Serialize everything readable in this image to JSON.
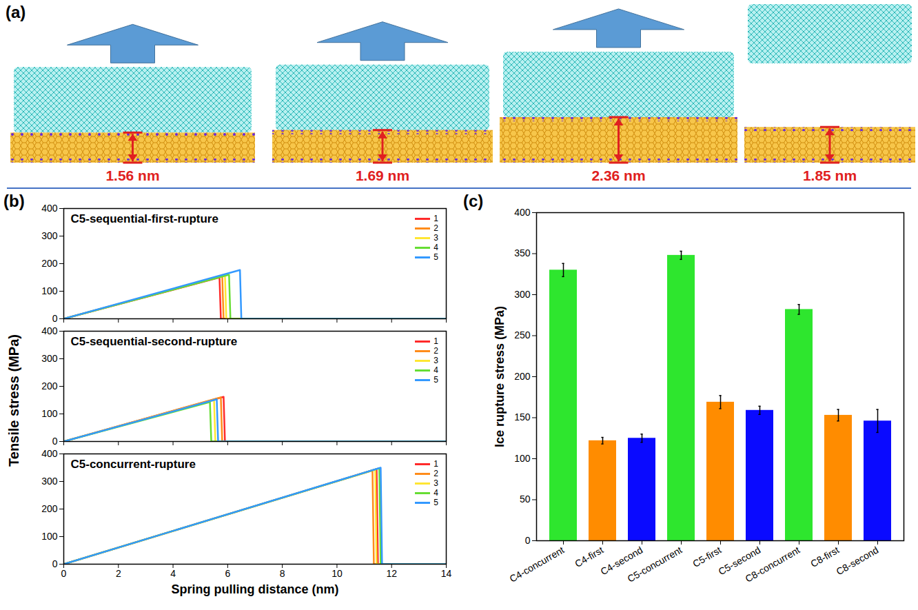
{
  "panel_a": {
    "label": "(a)",
    "values": [
      1.56,
      1.69,
      2.36,
      1.85
    ],
    "value_labels": [
      "1.56 nm",
      "1.69 nm",
      "2.36 nm",
      "1.85 nm"
    ]
  },
  "panel_b_label": "(b)",
  "panel_c_label": "(c)",
  "chart_data": [
    {
      "type": "line",
      "title": "C5-sequential-first-rupture",
      "xlim": [
        0,
        14
      ],
      "xticks": [
        0,
        2,
        4,
        6,
        8,
        10,
        12,
        14
      ],
      "ylim": [
        0,
        400
      ],
      "yticks": [
        0,
        100,
        200,
        300,
        400
      ],
      "tick_labels": "y",
      "legend": "upper right",
      "series": [
        {
          "name": "1",
          "color": "#ff2a2a",
          "x": [
            0,
            5.7,
            5.75,
            14
          ],
          "values": [
            0,
            150,
            0,
            0
          ]
        },
        {
          "name": "2",
          "color": "#ff8c1a",
          "x": [
            0,
            5.8,
            5.85,
            14
          ],
          "values": [
            0,
            155,
            0,
            0
          ]
        },
        {
          "name": "3",
          "color": "#ffe633",
          "x": [
            0,
            5.9,
            5.95,
            14
          ],
          "values": [
            0,
            158,
            0,
            0
          ]
        },
        {
          "name": "4",
          "color": "#66dd33",
          "x": [
            0,
            6.05,
            6.1,
            14
          ],
          "values": [
            0,
            160,
            0,
            0
          ]
        },
        {
          "name": "5",
          "color": "#3399ff",
          "x": [
            0,
            6.45,
            6.5,
            14
          ],
          "values": [
            0,
            177,
            0,
            0
          ]
        }
      ]
    },
    {
      "type": "line",
      "title": "C5-sequential-second-rupture",
      "y_label": "Tensile stress (MPa)",
      "xlim": [
        0,
        14
      ],
      "xticks": [
        0,
        2,
        4,
        6,
        8,
        10,
        12,
        14
      ],
      "ylim": [
        0,
        400
      ],
      "yticks": [
        0,
        100,
        200,
        300,
        400
      ],
      "tick_labels": "y",
      "legend": "upper right",
      "series": [
        {
          "name": "1",
          "color": "#ff2a2a",
          "x": [
            0,
            5.85,
            5.9,
            14
          ],
          "values": [
            0,
            162,
            0,
            0
          ]
        },
        {
          "name": "2",
          "color": "#ff8c1a",
          "x": [
            0,
            5.75,
            5.8,
            14
          ],
          "values": [
            0,
            160,
            0,
            0
          ]
        },
        {
          "name": "3",
          "color": "#ffe633",
          "x": [
            0,
            5.5,
            5.55,
            14
          ],
          "values": [
            0,
            150,
            0,
            0
          ]
        },
        {
          "name": "4",
          "color": "#66dd33",
          "x": [
            0,
            5.35,
            5.4,
            14
          ],
          "values": [
            0,
            143,
            0,
            0
          ]
        },
        {
          "name": "5",
          "color": "#3399ff",
          "x": [
            0,
            5.6,
            5.65,
            14
          ],
          "values": [
            0,
            153,
            0,
            0
          ]
        }
      ]
    },
    {
      "type": "line",
      "title": "C5-concurrent-rupture",
      "x_label": "Spring pulling distance (nm)",
      "xlim": [
        0,
        14
      ],
      "xticks": [
        0,
        2,
        4,
        6,
        8,
        10,
        12,
        14
      ],
      "ylim": [
        0,
        400
      ],
      "yticks": [
        0,
        100,
        200,
        300,
        400
      ],
      "legend": "upper right",
      "series": [
        {
          "name": "1",
          "color": "#ff2a2a",
          "x": [
            0,
            11.45,
            11.5,
            14
          ],
          "values": [
            0,
            345,
            0,
            0
          ]
        },
        {
          "name": "2",
          "color": "#ff8c1a",
          "x": [
            0,
            11.3,
            11.35,
            14
          ],
          "values": [
            0,
            340,
            0,
            0
          ]
        },
        {
          "name": "3",
          "color": "#ffe633",
          "x": [
            0,
            11.4,
            11.45,
            14
          ],
          "values": [
            0,
            343,
            0,
            0
          ]
        },
        {
          "name": "4",
          "color": "#66dd33",
          "x": [
            0,
            11.55,
            11.6,
            14
          ],
          "values": [
            0,
            348,
            0,
            0
          ]
        },
        {
          "name": "5",
          "color": "#3399ff",
          "x": [
            0,
            11.6,
            11.65,
            14
          ],
          "values": [
            0,
            350,
            0,
            0
          ]
        }
      ]
    },
    {
      "type": "bar",
      "y_label": "Ice rupture stress (MPa)",
      "categories": [
        "C4-concurrent",
        "C4-first",
        "C4-second",
        "C5-concurrent",
        "C5-first",
        "C5-second",
        "C8-concurrent",
        "C8-first",
        "C8-second"
      ],
      "values": [
        330,
        122,
        125,
        348,
        169,
        159,
        282,
        153,
        146
      ],
      "errors": [
        8,
        4,
        5,
        5,
        8,
        5,
        6,
        7,
        14
      ],
      "colors": [
        "#2ee62e",
        "#ff8c00",
        "#0a0aff",
        "#2ee62e",
        "#ff8c00",
        "#0a0aff",
        "#2ee62e",
        "#ff8c00",
        "#0a0aff"
      ],
      "ylim": [
        0,
        400
      ],
      "yticks": [
        0,
        50,
        100,
        150,
        200,
        250,
        300,
        350,
        400
      ]
    }
  ]
}
